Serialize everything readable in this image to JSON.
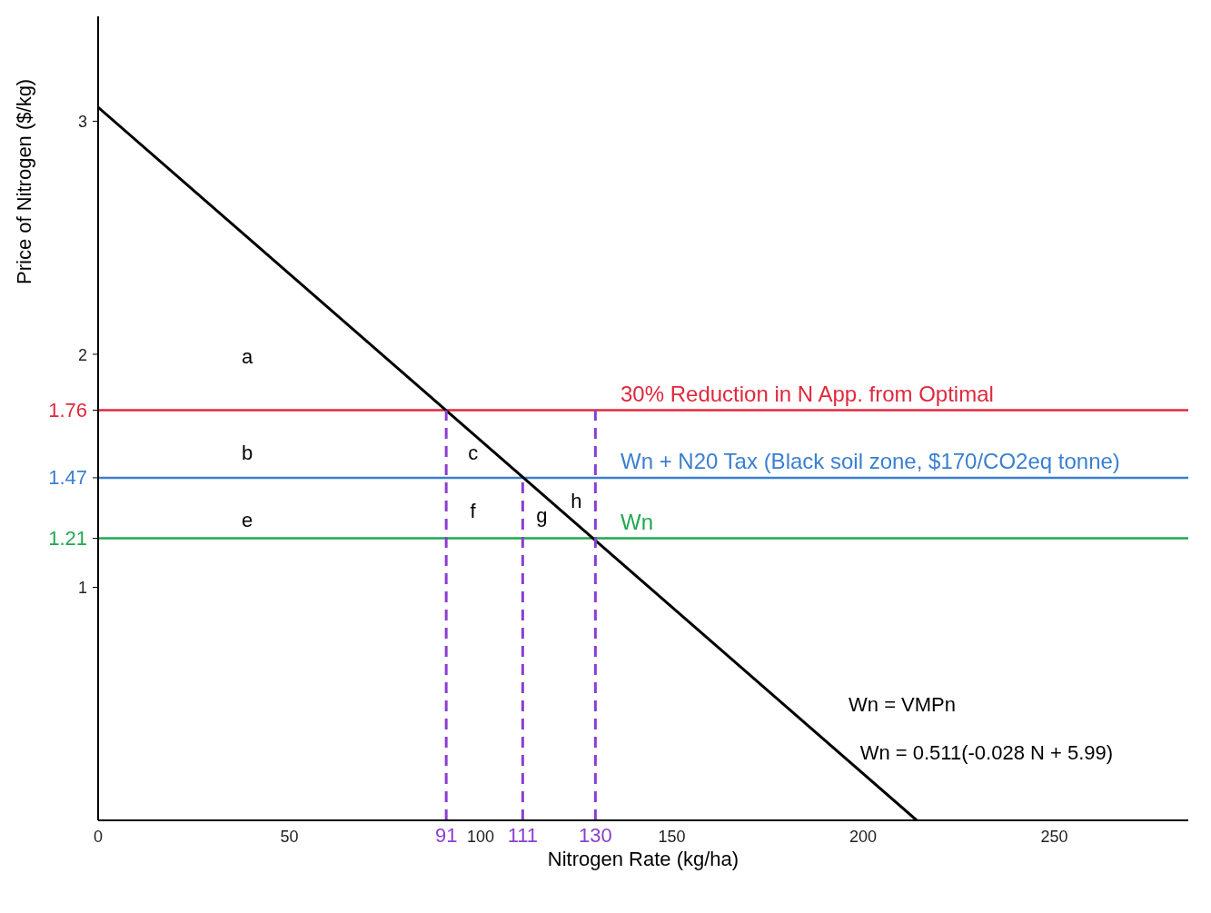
{
  "chart_data": {
    "type": "line",
    "xlabel": "Nitrogen Rate (kg/ha)",
    "ylabel": "Price of Nitrogen ($/kg)",
    "xlim": [
      0,
      285
    ],
    "ylim": [
      0,
      3.45
    ],
    "xticks": [
      0,
      50,
      91,
      100,
      111,
      130,
      150,
      200,
      250
    ],
    "yticks": [
      1,
      1.21,
      1.47,
      1.76,
      2,
      3
    ],
    "grid": false,
    "marker": "none",
    "series": [
      {
        "color": "#000000",
        "x": [
          0,
          214
        ],
        "values": [
          3.06,
          0
        ],
        "line_style": "solid"
      },
      {
        "color": "#8a3fd1",
        "x": [
          91,
          91
        ],
        "values": [
          0,
          1.76
        ],
        "line_style": "dashed"
      },
      {
        "color": "#8a3fd1",
        "x": [
          111,
          111
        ],
        "values": [
          0,
          1.47
        ],
        "line_style": "dashed"
      },
      {
        "color": "#8a3fd1",
        "x": [
          130,
          130
        ],
        "values": [
          0,
          1.76
        ],
        "line_style": "dashed"
      }
    ],
    "ref_lines": [
      {
        "axis": "y",
        "value": 1.76,
        "label": "30% Reduction in N App. from Optimal",
        "color": "#e0283c"
      },
      {
        "axis": "y",
        "value": 1.47,
        "label": "Wn + N20 Tax (Black soil zone, $170/CO2eq tonne)",
        "color": "#3a7fd0"
      },
      {
        "axis": "y",
        "value": 1.21,
        "label": "Wn",
        "color": "#1fa84f"
      }
    ],
    "annotations": [
      "a",
      "b",
      "e",
      "c",
      "f",
      "g",
      "h",
      "Wn = VMPn",
      "Wn = 0.511(-0.028 N + 5.99)"
    ]
  }
}
